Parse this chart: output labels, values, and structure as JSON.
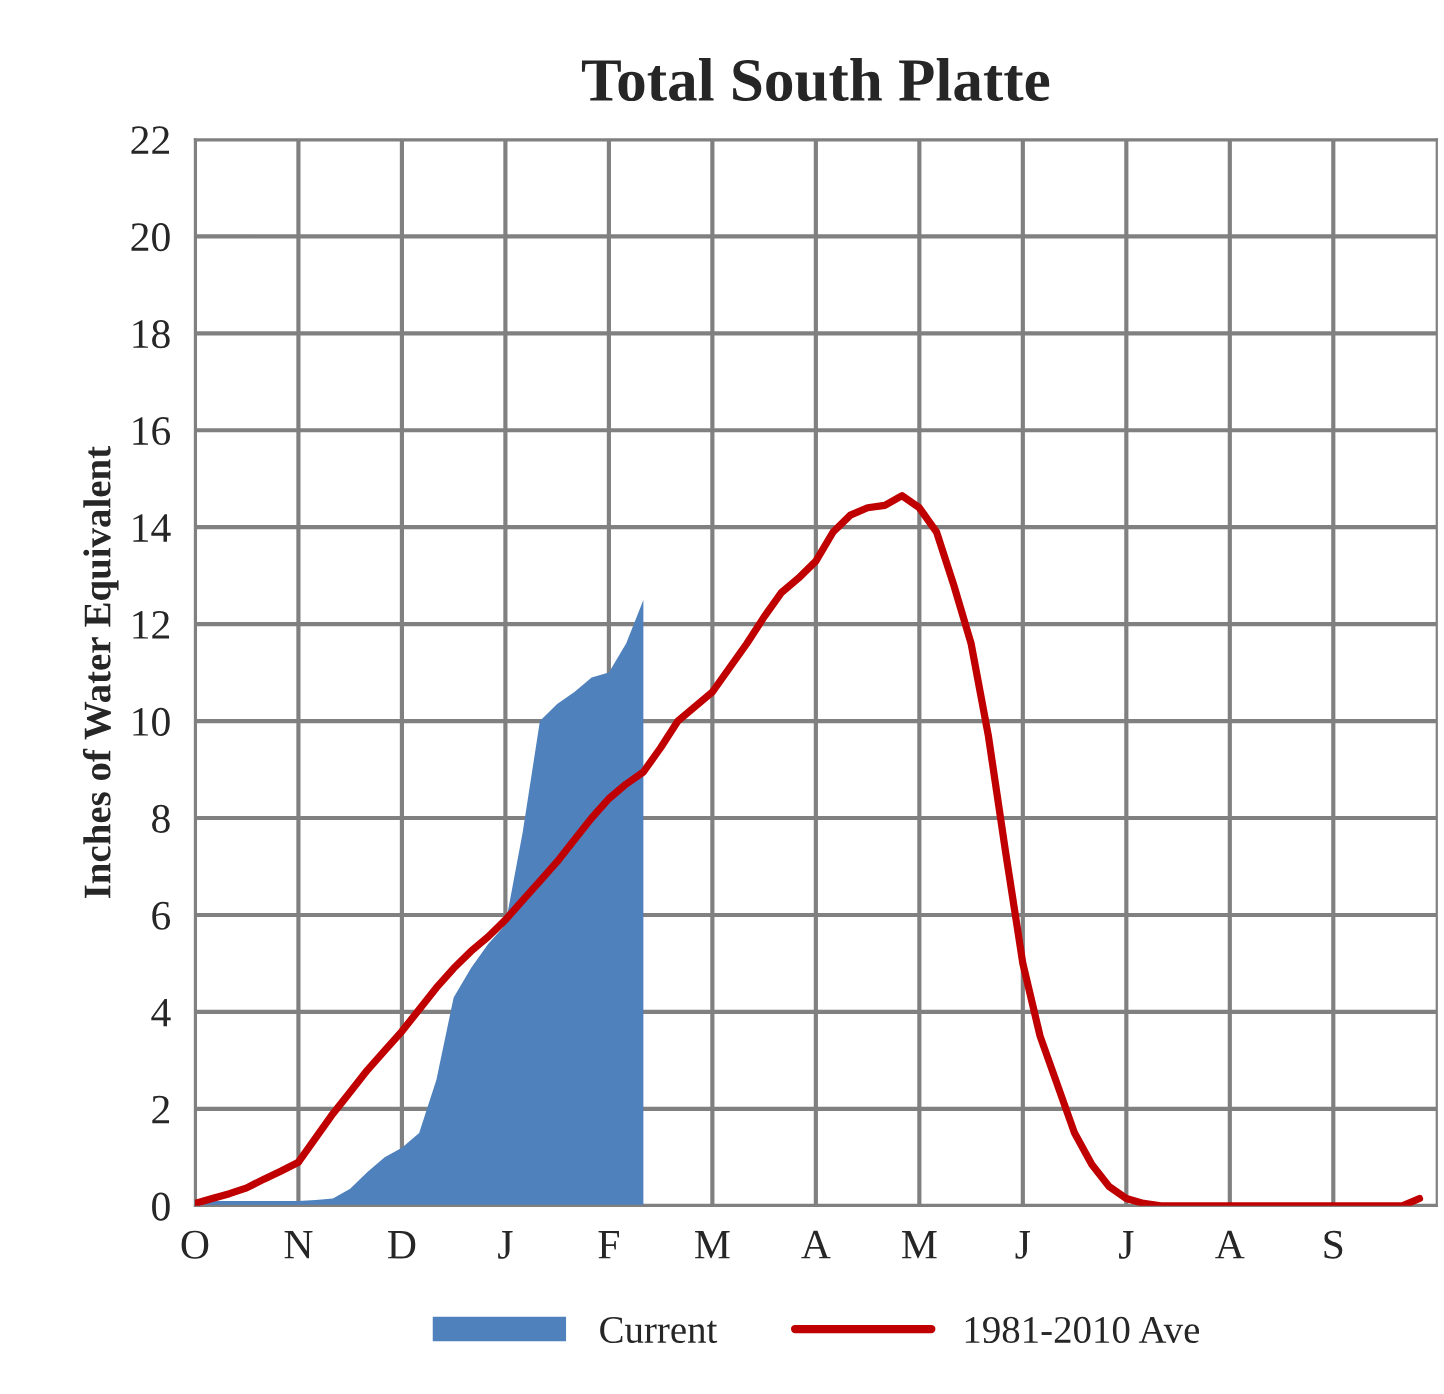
{
  "chart_data": {
    "type": "line",
    "title": "Total South Platte",
    "ylabel": "Inches of Water Equivalent",
    "categories": [
      "O",
      null,
      null,
      null,
      null,
      null,
      "N",
      null,
      null,
      null,
      null,
      null,
      "D",
      null,
      null,
      null,
      null,
      null,
      "J",
      null,
      null,
      null,
      null,
      null,
      "F",
      null,
      null,
      null,
      null,
      null,
      "M",
      null,
      null,
      null,
      null,
      null,
      "A",
      null,
      null,
      null,
      null,
      null,
      "M",
      null,
      null,
      null,
      null,
      null,
      "J",
      null,
      null,
      null,
      null,
      null,
      "J",
      null,
      null,
      null,
      null,
      null,
      "A",
      null,
      null,
      null,
      null,
      null,
      "S",
      null,
      null,
      null,
      null,
      null
    ],
    "ylim": [
      0,
      22
    ],
    "yticks": [
      0,
      2,
      4,
      6,
      8,
      10,
      12,
      14,
      16,
      18,
      20,
      22
    ],
    "grid": true,
    "legend": "bottom",
    "series": [
      {
        "name": "Current",
        "type": "area",
        "color": "#4f81bd",
        "values": [
          0,
          0.1,
          0.1,
          0.1,
          0.1,
          0.1,
          0.1,
          0.12,
          0.15,
          0.35,
          0.7,
          1.0,
          1.2,
          1.5,
          2.6,
          4.3,
          4.9,
          5.4,
          5.8,
          7.7,
          10.0,
          10.35,
          10.6,
          10.9,
          11.0,
          11.6,
          12.5,
          null,
          null,
          null,
          null,
          null,
          null,
          null,
          null,
          null,
          null,
          null,
          null,
          null,
          null,
          null,
          null,
          null,
          null,
          null,
          null,
          null,
          null,
          null,
          null,
          null,
          null,
          null,
          null,
          null,
          null,
          null,
          null,
          null,
          null,
          null,
          null,
          null,
          null,
          null,
          null,
          null,
          null,
          null,
          null,
          null
        ]
      },
      {
        "name": "1981-2010 Ave",
        "color": "#c00000",
        "values": [
          0.05,
          0.15,
          0.25,
          0.37,
          0.55,
          0.72,
          0.9,
          1.4,
          1.9,
          2.35,
          2.8,
          3.2,
          3.6,
          4.05,
          4.5,
          4.9,
          5.25,
          5.55,
          5.9,
          6.3,
          6.7,
          7.1,
          7.55,
          8.0,
          8.4,
          8.7,
          8.95,
          9.45,
          10.0,
          10.3,
          10.6,
          11.1,
          11.6,
          12.15,
          12.65,
          12.95,
          13.3,
          13.9,
          14.25,
          14.4,
          14.45,
          14.65,
          14.4,
          13.9,
          12.8,
          11.6,
          9.7,
          7.3,
          5.0,
          3.5,
          2.5,
          1.5,
          0.85,
          0.4,
          0.15,
          0.05,
          0,
          0,
          0,
          0,
          0,
          0,
          0,
          0,
          0,
          0,
          0,
          0,
          0,
          0,
          0,
          0.15
        ]
      }
    ]
  }
}
